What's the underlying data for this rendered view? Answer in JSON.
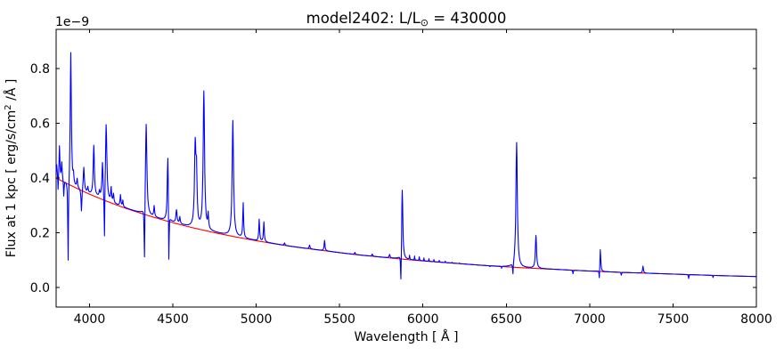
{
  "figure": {
    "title_prefix": "model2402: L/L",
    "title_sub": "⊙",
    "title_suffix": " = 430000",
    "xlabel": "Wavelength [ Å ]",
    "ylabel_prefix": "Flux at 1 kpc [ erg/s/cm",
    "ylabel_sup": "2",
    "ylabel_suffix": " /Å ]",
    "offset_text": "1e−9",
    "colors": {
      "spectrum": "#0000ff",
      "continuum": "#ff0000",
      "axes": "#000000",
      "background": "#ffffff"
    }
  },
  "chart_data": {
    "type": "line",
    "title": "model2402: L/L⊙ = 430000",
    "xlabel": "Wavelength [ Å ]",
    "ylabel": "Flux at 1 kpc [ erg/s/cm2 /Å ]",
    "y_offset_scale": "1e-9",
    "xlim": [
      3800,
      8000
    ],
    "ylim": [
      -0.0715,
      0.943
    ],
    "grid": false,
    "legend": "none",
    "xticks": [
      {
        "label": "4000",
        "value": 4000
      },
      {
        "label": "4500",
        "value": 4500
      },
      {
        "label": "5000",
        "value": 5000
      },
      {
        "label": "5500",
        "value": 5500
      },
      {
        "label": "6000",
        "value": 6000
      },
      {
        "label": "6500",
        "value": 6500
      },
      {
        "label": "7000",
        "value": 7000
      },
      {
        "label": "7500",
        "value": 7500
      },
      {
        "label": "8000",
        "value": 8000
      }
    ],
    "yticks": [
      {
        "label": "0.0",
        "value": 0.0
      },
      {
        "label": "0.2",
        "value": 0.2
      },
      {
        "label": "0.4",
        "value": 0.4
      },
      {
        "label": "0.6",
        "value": 0.6
      },
      {
        "label": "0.8",
        "value": 0.8
      }
    ],
    "series": [
      {
        "name": "spectrum",
        "color": "#0000ff"
      },
      {
        "name": "continuum",
        "color": "#ff0000"
      }
    ],
    "continuum_points": [
      [
        3800,
        0.4
      ],
      [
        4000,
        0.341
      ],
      [
        4200,
        0.293
      ],
      [
        4400,
        0.254
      ],
      [
        4600,
        0.221
      ],
      [
        4800,
        0.194
      ],
      [
        5000,
        0.171
      ],
      [
        5200,
        0.151
      ],
      [
        5400,
        0.135
      ],
      [
        5600,
        0.12
      ],
      [
        5800,
        0.108
      ],
      [
        6000,
        0.097
      ],
      [
        6200,
        0.088
      ],
      [
        6400,
        0.079
      ],
      [
        6600,
        0.072
      ],
      [
        6800,
        0.066
      ],
      [
        7000,
        0.06
      ],
      [
        7200,
        0.055
      ],
      [
        7400,
        0.051
      ],
      [
        7600,
        0.047
      ],
      [
        7800,
        0.043
      ],
      [
        8000,
        0.04
      ]
    ],
    "emission_lines": [
      {
        "wl": 3804,
        "peak": 0.45,
        "w": 3
      },
      {
        "wl": 3820,
        "peak": 0.52,
        "w": 3
      },
      {
        "wl": 3834,
        "peak": 0.46,
        "w": 3
      },
      {
        "wl": 3888,
        "peak": 0.86,
        "w": 4
      },
      {
        "wl": 3904,
        "peak": 0.43,
        "w": 3
      },
      {
        "wl": 3926,
        "peak": 0.4,
        "w": 3
      },
      {
        "wl": 3966,
        "peak": 0.44,
        "w": 4
      },
      {
        "wl": 3990,
        "peak": 0.37,
        "w": 3
      },
      {
        "wl": 4026,
        "peak": 0.52,
        "w": 4
      },
      {
        "wl": 4060,
        "peak": 0.36,
        "w": 3
      },
      {
        "wl": 4078,
        "peak": 0.46,
        "w": 4
      },
      {
        "wl": 4100,
        "peak": 0.6,
        "w": 5
      },
      {
        "wl": 4130,
        "peak": 0.37,
        "w": 3
      },
      {
        "wl": 4144,
        "peak": 0.345,
        "w": 3
      },
      {
        "wl": 4186,
        "peak": 0.34,
        "w": 3
      },
      {
        "wl": 4200,
        "peak": 0.32,
        "w": 2.5
      },
      {
        "wl": 4340,
        "peak": 0.6,
        "w": 5
      },
      {
        "wl": 4388,
        "peak": 0.3,
        "w": 3
      },
      {
        "wl": 4470,
        "peak": 0.48,
        "w": 4
      },
      {
        "wl": 4522,
        "peak": 0.285,
        "w": 4
      },
      {
        "wl": 4542,
        "peak": 0.26,
        "w": 3
      },
      {
        "wl": 4634,
        "peak": 0.57,
        "w": 5
      },
      {
        "wl": 4642,
        "peak": 0.5,
        "w": 4
      },
      {
        "wl": 4686,
        "peak": 0.72,
        "w": 5
      },
      {
        "wl": 4712,
        "peak": 0.28,
        "w": 3
      },
      {
        "wl": 4860,
        "peak": 0.61,
        "w": 5
      },
      {
        "wl": 4922,
        "peak": 0.31,
        "w": 3
      },
      {
        "wl": 5018,
        "peak": 0.25,
        "w": 3
      },
      {
        "wl": 5046,
        "peak": 0.24,
        "w": 3
      },
      {
        "wl": 5170,
        "peak": 0.163,
        "w": 3
      },
      {
        "wl": 5320,
        "peak": 0.155,
        "w": 3
      },
      {
        "wl": 5410,
        "peak": 0.172,
        "w": 3
      },
      {
        "wl": 5592,
        "peak": 0.128,
        "w": 3
      },
      {
        "wl": 5696,
        "peak": 0.122,
        "w": 3
      },
      {
        "wl": 5800,
        "peak": 0.121,
        "w": 3
      },
      {
        "wl": 5876,
        "peak": 0.36,
        "w": 4
      },
      {
        "wl": 6562,
        "peak": 0.53,
        "w": 5
      },
      {
        "wl": 6678,
        "peak": 0.19,
        "w": 4
      },
      {
        "wl": 7064,
        "peak": 0.14,
        "w": 3
      },
      {
        "wl": 7320,
        "peak": 0.078,
        "w": 3
      }
    ],
    "absorption_lines": [
      {
        "wl": 3812,
        "peak": 0.36,
        "w": 2
      },
      {
        "wl": 3846,
        "peak": 0.335,
        "w": 2
      },
      {
        "wl": 3872,
        "peak": 0.1,
        "w": 2.5
      },
      {
        "wl": 3952,
        "peak": 0.28,
        "w": 3
      },
      {
        "wl": 4090,
        "peak": 0.19,
        "w": 2.5
      },
      {
        "wl": 4330,
        "peak": 0.11,
        "w": 2.5
      },
      {
        "wl": 4476,
        "peak": 0.1,
        "w": 2
      },
      {
        "wl": 5006,
        "peak": 0.175,
        "w": 2.5
      },
      {
        "wl": 5868,
        "peak": 0.03,
        "w": 2.5
      },
      {
        "wl": 5920,
        "peak": 0.118,
        "w": 1.5
      },
      {
        "wl": 5950,
        "peak": 0.115,
        "w": 1.5
      },
      {
        "wl": 5978,
        "peak": 0.112,
        "w": 1.5
      },
      {
        "wl": 6006,
        "peak": 0.108,
        "w": 1.5
      },
      {
        "wl": 6036,
        "peak": 0.105,
        "w": 1.5
      },
      {
        "wl": 6066,
        "peak": 0.102,
        "w": 1.5
      },
      {
        "wl": 6098,
        "peak": 0.099,
        "w": 1.5
      },
      {
        "wl": 6134,
        "peak": 0.096,
        "w": 1.5
      },
      {
        "wl": 6174,
        "peak": 0.092,
        "w": 1.5
      },
      {
        "wl": 6218,
        "peak": 0.089,
        "w": 1.5
      },
      {
        "wl": 6272,
        "peak": 0.085,
        "w": 1.5
      },
      {
        "wl": 6334,
        "peak": 0.081,
        "w": 1.5
      },
      {
        "wl": 6402,
        "peak": 0.076,
        "w": 1.5
      },
      {
        "wl": 6472,
        "peak": 0.07,
        "w": 1.5
      },
      {
        "wl": 6540,
        "peak": 0.05,
        "w": 2.5
      },
      {
        "wl": 6900,
        "peak": 0.05,
        "w": 2
      },
      {
        "wl": 7058,
        "peak": 0.035,
        "w": 2
      },
      {
        "wl": 7190,
        "peak": 0.045,
        "w": 2
      },
      {
        "wl": 7594,
        "peak": 0.033,
        "w": 2
      },
      {
        "wl": 7740,
        "peak": 0.036,
        "w": 1.5
      }
    ]
  }
}
